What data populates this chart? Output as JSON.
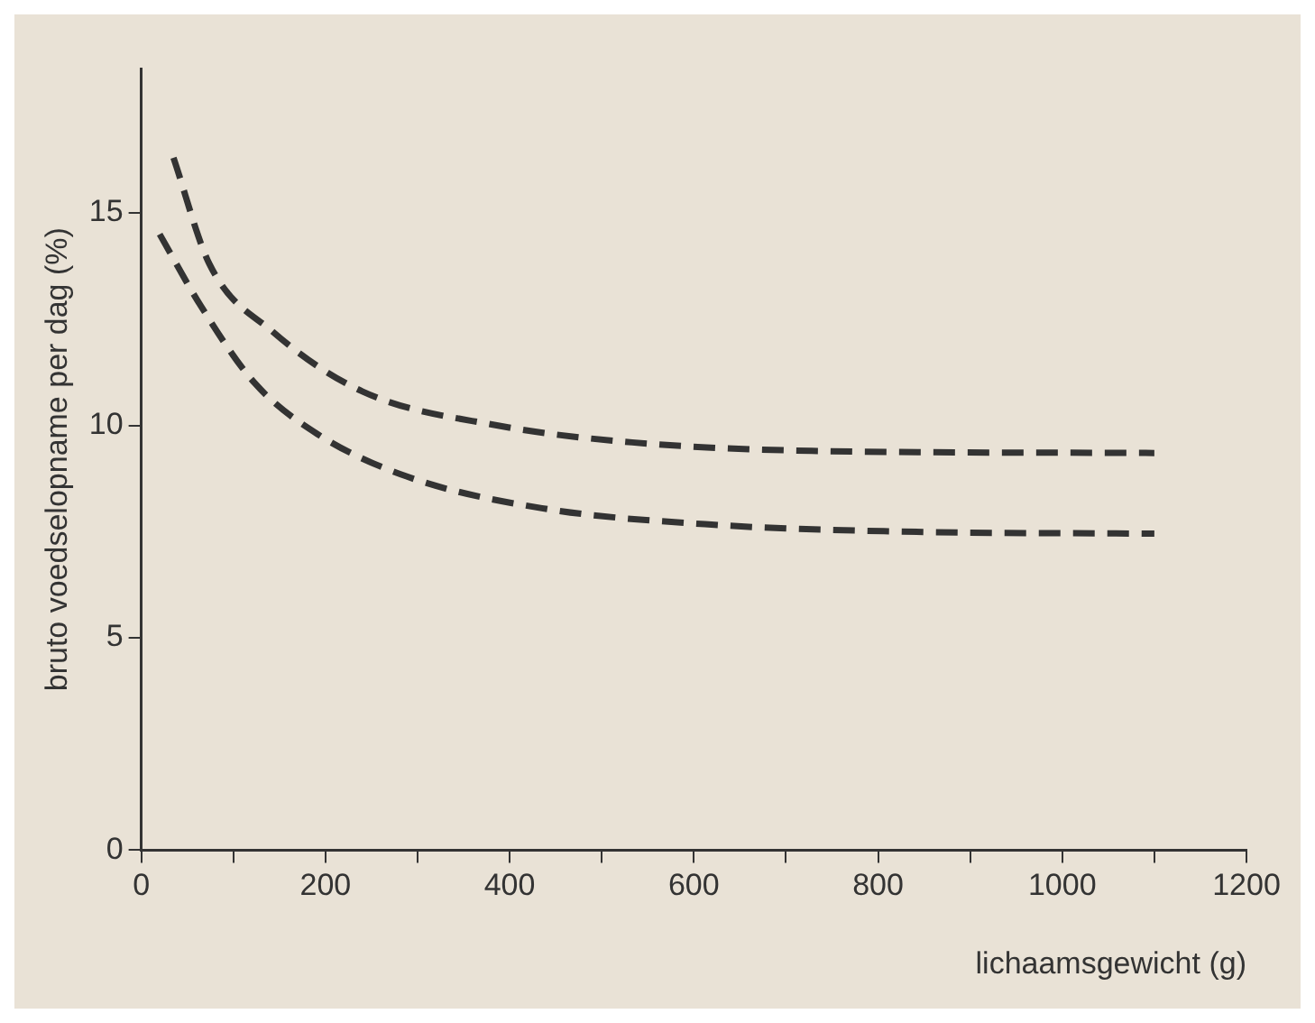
{
  "chart_data": {
    "type": "line",
    "xlabel": "lichaamsgewicht (g)",
    "ylabel": "bruto voedselopname per dag (%)",
    "series": [
      {
        "color": "#333333",
        "x": [
          35,
          74,
          143,
          240,
          386,
          533,
          728,
          1100
        ],
        "values": [
          16.3,
          13.8,
          12.2,
          10.8,
          10.0,
          9.6,
          9.4,
          9.35
        ]
      },
      {
        "color": "#333333",
        "x": [
          20,
          65,
          123,
          191,
          288,
          435,
          630,
          825,
          1100
        ],
        "values": [
          14.5,
          12.8,
          11.0,
          9.8,
          8.8,
          8.05,
          7.65,
          7.5,
          7.45
        ]
      }
    ],
    "xlim": [
      0,
      1200
    ],
    "xticks": [
      0,
      {
        "value": 100,
        "label": null
      },
      200,
      {
        "value": 300,
        "label": null
      },
      400,
      {
        "value": 500,
        "label": null
      },
      600,
      {
        "value": 700,
        "label": null
      },
      800,
      {
        "value": 900,
        "label": null
      },
      1000,
      {
        "value": 1100,
        "label": null
      },
      1200
    ],
    "ylim": [
      0,
      18.4
    ],
    "yticks": [
      0,
      5,
      10,
      15
    ],
    "grid": false,
    "legend": false,
    "marker": "none",
    "line_style": "dashed"
  }
}
